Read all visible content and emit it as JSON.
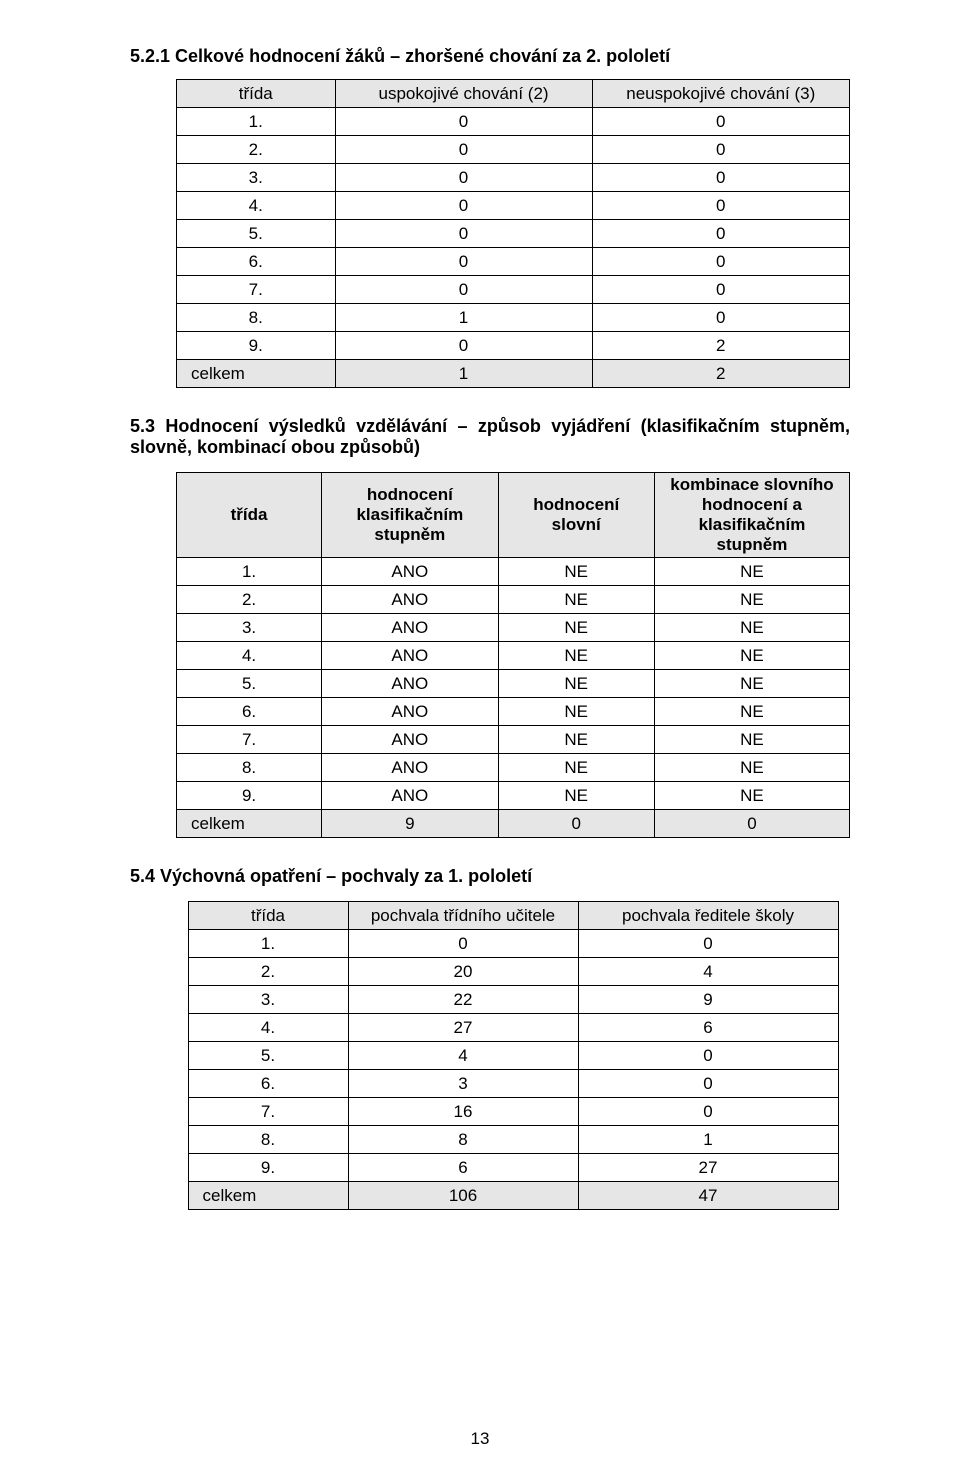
{
  "section_521": {
    "title": "5.2.1 Celkové hodnocení žáků – zhoršené chování za 2. pololetí",
    "columns": [
      "třída",
      "uspokojivé chování (2)",
      "neuspokojivé chování (3)"
    ],
    "rows": [
      [
        "1.",
        "0",
        "0"
      ],
      [
        "2.",
        "0",
        "0"
      ],
      [
        "3.",
        "0",
        "0"
      ],
      [
        "4.",
        "0",
        "0"
      ],
      [
        "5.",
        "0",
        "0"
      ],
      [
        "6.",
        "0",
        "0"
      ],
      [
        "7.",
        "0",
        "0"
      ],
      [
        "8.",
        "1",
        "0"
      ],
      [
        "9.",
        "0",
        "2"
      ]
    ],
    "total": [
      "celkem",
      "1",
      "2"
    ],
    "col_widths": [
      "160px",
      "260px",
      "260px"
    ]
  },
  "section_53": {
    "title": "5.3 Hodnocení výsledků vzdělávání – způsob vyjádření (klasifikačním stupněm, slovně, kombinací obou způsobů)",
    "columns": [
      "třída",
      "hodnocení klasifikačním stupněm",
      "hodnocení slovní",
      "kombinace slovního hodnocení a klasifikačním stupněm"
    ],
    "rows": [
      [
        "1.",
        "ANO",
        "NE",
        "NE"
      ],
      [
        "2.",
        "ANO",
        "NE",
        "NE"
      ],
      [
        "3.",
        "ANO",
        "NE",
        "NE"
      ],
      [
        "4.",
        "ANO",
        "NE",
        "NE"
      ],
      [
        "5.",
        "ANO",
        "NE",
        "NE"
      ],
      [
        "6.",
        "ANO",
        "NE",
        "NE"
      ],
      [
        "7.",
        "ANO",
        "NE",
        "NE"
      ],
      [
        "8.",
        "ANO",
        "NE",
        "NE"
      ],
      [
        "9.",
        "ANO",
        "NE",
        "NE"
      ]
    ],
    "total": [
      "celkem",
      "9",
      "0",
      "0"
    ],
    "col_widths": [
      "150px",
      "180px",
      "160px",
      "200px"
    ]
  },
  "section_54": {
    "title": "5.4 Výchovná opatření – pochvaly za 1. pololetí",
    "columns": [
      "třída",
      "pochvala třídního učitele",
      "pochvala ředitele školy"
    ],
    "rows": [
      [
        "1.",
        "0",
        "0"
      ],
      [
        "2.",
        "20",
        "4"
      ],
      [
        "3.",
        "22",
        "9"
      ],
      [
        "4.",
        "27",
        "6"
      ],
      [
        "5.",
        "4",
        "0"
      ],
      [
        "6.",
        "3",
        "0"
      ],
      [
        "7.",
        "16",
        "0"
      ],
      [
        "8.",
        "8",
        "1"
      ],
      [
        "9.",
        "6",
        "27"
      ]
    ],
    "total": [
      "celkem",
      "106",
      "47"
    ],
    "col_widths": [
      "160px",
      "230px",
      "260px"
    ]
  },
  "page_number": "13"
}
